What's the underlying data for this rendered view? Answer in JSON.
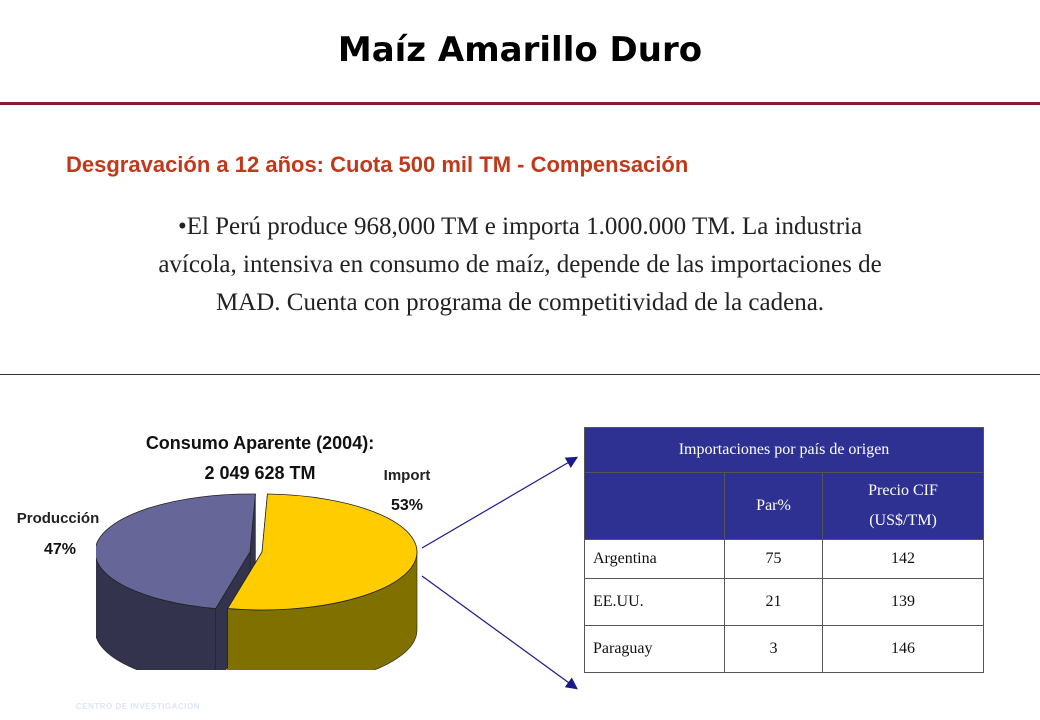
{
  "slide": {
    "title": "Maíz Amarillo Duro",
    "subtitle": "Desgravación a 12 años: Cuota 500 mil TM - Compensación",
    "body_line1": "•El Perú produce 968,000 TM e importa 1.000.000 TM. La industria",
    "body_line2": "avícola, intensiva en consumo de maíz, depende de las importaciones de",
    "body_line3": "MAD. Cuenta con programa de competitividad de la cadena.",
    "footer": "CENTRO DE INVESTIGACION"
  },
  "chart_data": {
    "type": "pie",
    "title_line1": "Consumo Aparente (2004):",
    "title_line2": "2 049 628 TM",
    "categories": [
      "Import",
      "Producción"
    ],
    "values": [
      53,
      47
    ],
    "value_labels": [
      "53%",
      "47%"
    ],
    "colors": [
      "#ffcc00",
      "#666699"
    ],
    "side_colors": [
      "#807000",
      "#33334d"
    ]
  },
  "table": {
    "title": "Importaciones por país de origen",
    "col_par": "Par%",
    "col_price_line1": "Precio CIF",
    "col_price_line2": "(US$/TM)",
    "rows": [
      {
        "country": "Argentina",
        "par": "75",
        "price": "142"
      },
      {
        "country": "EE.UU.",
        "par": "21",
        "price": "139"
      },
      {
        "country": "Paraguay",
        "par": "3",
        "price": "146"
      }
    ]
  }
}
